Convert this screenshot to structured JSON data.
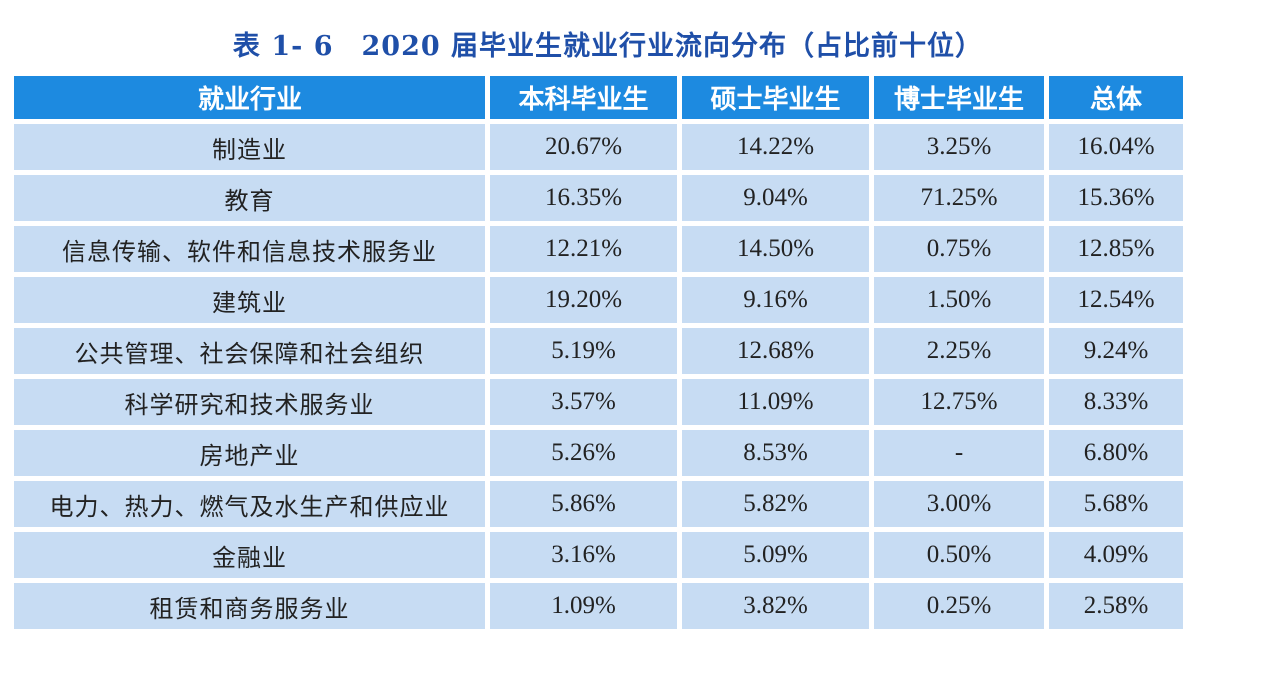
{
  "table": {
    "title_num": "表 1- 6",
    "title_text": "2020 届毕业生就业行业流向分布（占比前十位）",
    "headers": [
      "就业行业",
      "本科毕业生",
      "硕士毕业生",
      "博士毕业生",
      "总体"
    ],
    "rows": [
      [
        "制造业",
        "20.67%",
        "14.22%",
        "3.25%",
        "16.04%"
      ],
      [
        "教育",
        "16.35%",
        "9.04%",
        "71.25%",
        "15.36%"
      ],
      [
        "信息传输、软件和信息技术服务业",
        "12.21%",
        "14.50%",
        "0.75%",
        "12.85%"
      ],
      [
        "建筑业",
        "19.20%",
        "9.16%",
        "1.50%",
        "12.54%"
      ],
      [
        "公共管理、社会保障和社会组织",
        "5.19%",
        "12.68%",
        "2.25%",
        "9.24%"
      ],
      [
        "科学研究和技术服务业",
        "3.57%",
        "11.09%",
        "12.75%",
        "8.33%"
      ],
      [
        "房地产业",
        "5.26%",
        "8.53%",
        "-",
        "6.80%"
      ],
      [
        "电力、热力、燃气及水生产和供应业",
        "5.86%",
        "5.82%",
        "3.00%",
        "5.68%"
      ],
      [
        "金融业",
        "3.16%",
        "5.09%",
        "0.50%",
        "4.09%"
      ],
      [
        "租赁和商务服务业",
        "1.09%",
        "3.82%",
        "0.25%",
        "2.58%"
      ]
    ]
  },
  "colors": {
    "title": "#1f4fa8",
    "header_bg": "#1d8ae0",
    "cell_bg": "#c7dcf3"
  }
}
